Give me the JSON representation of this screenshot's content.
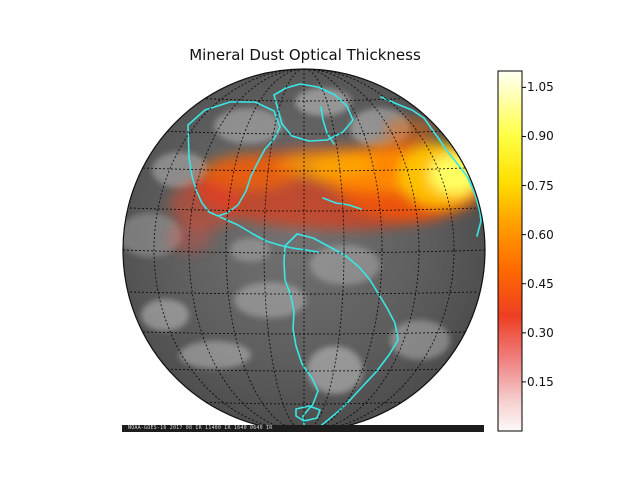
{
  "title": "Mineral Dust Optical Thickness",
  "colorbar": {
    "ticks": [
      "1.05",
      "0.90",
      "0.75",
      "0.60",
      "0.45",
      "0.30",
      "0.15"
    ],
    "tick_values": [
      1.05,
      0.9,
      0.75,
      0.6,
      0.45,
      0.3,
      0.15
    ],
    "range": [
      0.0,
      1.1
    ]
  },
  "footer_text": "NOAA-GOES-16  2017 08 IR  11400  IR  1640  0640  IR",
  "colors": {
    "background": "#ffffff",
    "coastline": "#39e7e7",
    "grid": "#000000",
    "globe_base": "#5b5b5b",
    "dust_low": "#ff2f00",
    "dust_mid": "#ff7b00",
    "dust_high": "#ffff66",
    "colorbar_low": "#fdf5f5",
    "colorbar_top": "#ffffee"
  }
}
